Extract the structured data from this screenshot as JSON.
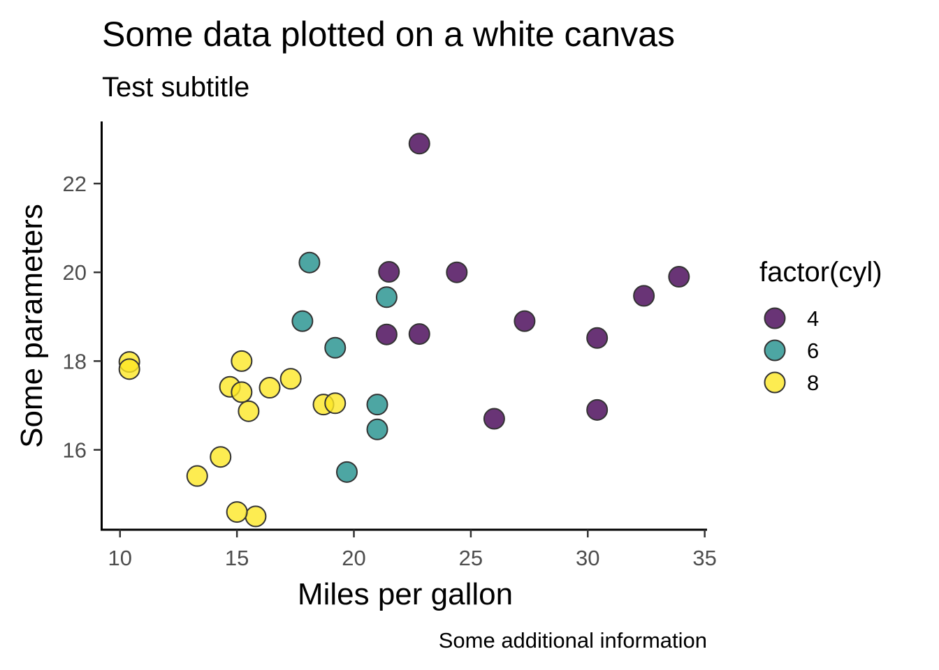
{
  "chart_data": {
    "type": "scatter",
    "title": "Some data plotted on a white canvas",
    "subtitle": "Test subtitle",
    "xlabel": "Miles per gallon",
    "ylabel": "Some parameters",
    "caption": "Some additional information",
    "xlim": [
      9.2,
      35.1
    ],
    "ylim": [
      14.2,
      23.4
    ],
    "x_ticks": [
      10,
      15,
      20,
      25,
      30,
      35
    ],
    "y_ticks": [
      16,
      18,
      20,
      22
    ],
    "grid": false,
    "legend": {
      "title": "factor(cyl)",
      "position": "right",
      "entries": [
        {
          "label": "4",
          "color": "#440154"
        },
        {
          "label": "6",
          "color": "#21908C"
        },
        {
          "label": "8",
          "color": "#FDE725"
        }
      ]
    },
    "series": [
      {
        "name": "4",
        "color": "#440154",
        "points": [
          {
            "x": 22.8,
            "y": 18.61
          },
          {
            "x": 24.4,
            "y": 20.0
          },
          {
            "x": 22.8,
            "y": 22.9
          },
          {
            "x": 32.4,
            "y": 19.47
          },
          {
            "x": 30.4,
            "y": 18.52
          },
          {
            "x": 33.9,
            "y": 19.9
          },
          {
            "x": 21.5,
            "y": 20.01
          },
          {
            "x": 27.3,
            "y": 18.9
          },
          {
            "x": 26.0,
            "y": 16.7
          },
          {
            "x": 30.4,
            "y": 16.9
          },
          {
            "x": 21.4,
            "y": 18.6
          }
        ]
      },
      {
        "name": "6",
        "color": "#21908C",
        "points": [
          {
            "x": 21.0,
            "y": 16.46
          },
          {
            "x": 21.0,
            "y": 17.02
          },
          {
            "x": 21.4,
            "y": 19.44
          },
          {
            "x": 18.1,
            "y": 20.22
          },
          {
            "x": 19.2,
            "y": 18.3
          },
          {
            "x": 17.8,
            "y": 18.9
          },
          {
            "x": 19.7,
            "y": 15.5
          }
        ]
      },
      {
        "name": "8",
        "color": "#FDE725",
        "points": [
          {
            "x": 18.7,
            "y": 17.02
          },
          {
            "x": 14.3,
            "y": 15.84
          },
          {
            "x": 16.4,
            "y": 17.4
          },
          {
            "x": 17.3,
            "y": 17.6
          },
          {
            "x": 15.2,
            "y": 18.0
          },
          {
            "x": 10.4,
            "y": 17.98
          },
          {
            "x": 10.4,
            "y": 17.82
          },
          {
            "x": 14.7,
            "y": 17.42
          },
          {
            "x": 15.5,
            "y": 16.87
          },
          {
            "x": 15.2,
            "y": 17.3
          },
          {
            "x": 13.3,
            "y": 15.41
          },
          {
            "x": 19.2,
            "y": 17.05
          },
          {
            "x": 15.8,
            "y": 14.5
          },
          {
            "x": 15.0,
            "y": 14.6
          }
        ]
      }
    ]
  }
}
